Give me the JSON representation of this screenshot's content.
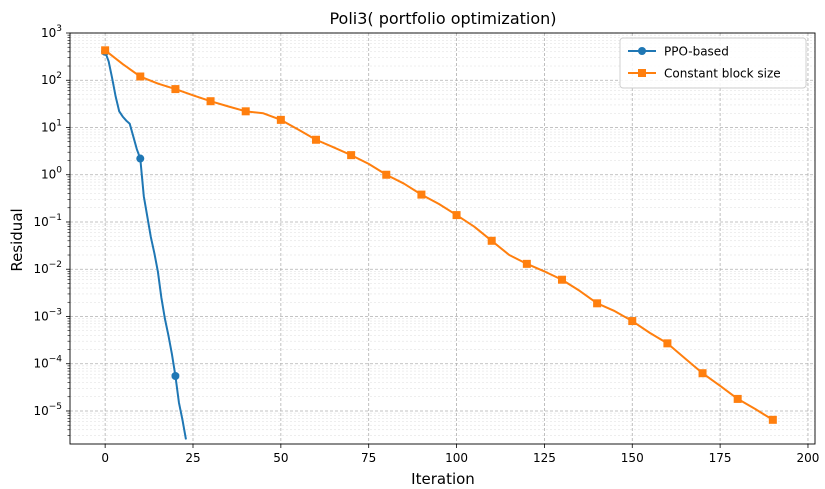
{
  "chart_data": {
    "type": "line",
    "title": "Poli3( portfolio optimization)",
    "xlabel": "Iteration",
    "ylabel": "Residual",
    "xlim": [
      -10,
      202
    ],
    "ylim": [
      2e-06,
      1000
    ],
    "yscale": "log",
    "grid": true,
    "legend_position": "top-right",
    "x_ticks": [
      0,
      25,
      50,
      75,
      100,
      125,
      150,
      175,
      200
    ],
    "x_tick_labels": [
      "0",
      "25",
      "50",
      "75",
      "100",
      "125",
      "150",
      "175",
      "200"
    ],
    "y_ticks": [
      {
        "base": "10",
        "exp": "3"
      },
      {
        "base": "10",
        "exp": "2"
      },
      {
        "base": "10",
        "exp": "1"
      },
      {
        "base": "10",
        "exp": "0"
      },
      {
        "base": "10",
        "exp": "−1"
      },
      {
        "base": "10",
        "exp": "−2"
      },
      {
        "base": "10",
        "exp": "−3"
      },
      {
        "base": "10",
        "exp": "−4"
      },
      {
        "base": "10",
        "exp": "−5"
      }
    ],
    "y_tick_values": [
      1000,
      100,
      10,
      1,
      0.1,
      0.01,
      0.001,
      0.0001,
      1e-05
    ],
    "series": [
      {
        "name": "PPO-based",
        "color": "#1f77b4",
        "marker": "circle",
        "marker_every": 10,
        "x": [
          0,
          1,
          2,
          3,
          4,
          5,
          6,
          7,
          8,
          9,
          10,
          11,
          12,
          13,
          14,
          15,
          16,
          17,
          18,
          19,
          20,
          21,
          22,
          23
        ],
        "y": [
          400,
          250,
          110,
          45,
          22,
          17,
          14,
          12,
          6.5,
          3.5,
          2.2,
          0.35,
          0.13,
          0.048,
          0.022,
          0.009,
          0.0025,
          0.0009,
          0.0004,
          0.00016,
          5.5e-05,
          1.5e-05,
          6.5e-06,
          2.5e-06
        ]
      },
      {
        "name": "Constant block size",
        "color": "#ff7f0e",
        "marker": "square",
        "marker_every": 10,
        "x": [
          0,
          5,
          10,
          15,
          20,
          25,
          30,
          35,
          40,
          45,
          50,
          55,
          60,
          65,
          70,
          75,
          80,
          85,
          90,
          95,
          100,
          105,
          110,
          115,
          120,
          125,
          130,
          135,
          140,
          145,
          150,
          155,
          160,
          165,
          170,
          175,
          180,
          185,
          190
        ],
        "y": [
          430,
          220,
          120,
          85,
          65,
          48,
          36,
          28,
          22,
          20,
          14.5,
          9,
          5.5,
          3.8,
          2.6,
          1.7,
          1.0,
          0.65,
          0.38,
          0.24,
          0.14,
          0.08,
          0.04,
          0.02,
          0.013,
          0.009,
          0.006,
          0.0035,
          0.0019,
          0.0013,
          0.0008,
          0.00045,
          0.00027,
          0.00013,
          6.3e-05,
          3.4e-05,
          1.8e-05,
          1.1e-05,
          6.5e-06
        ]
      }
    ]
  }
}
